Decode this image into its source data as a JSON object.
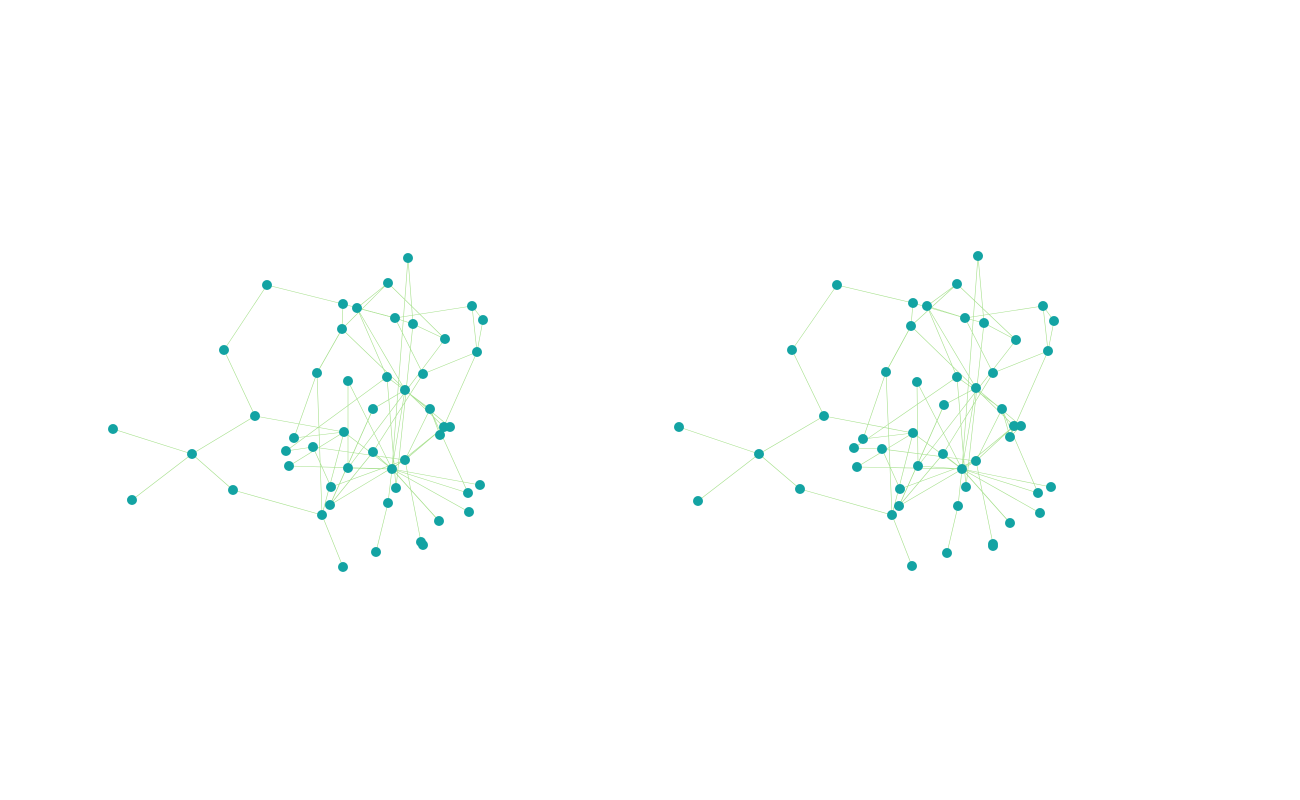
{
  "colors": {
    "background": "#ffffff",
    "node": "#13a3a3",
    "edge": "#a6e08c"
  },
  "graphs": [
    {
      "name": "network-graph-left",
      "node_count": 52,
      "edge_count": 74
    },
    {
      "name": "network-graph-right",
      "node_count": 52,
      "edge_count": 74
    }
  ]
}
